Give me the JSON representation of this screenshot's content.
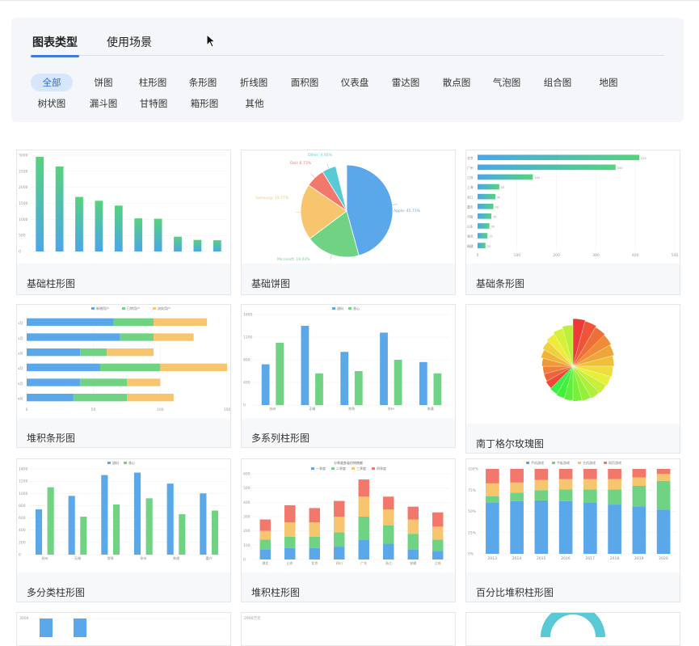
{
  "tabs": [
    {
      "label": "图表类型",
      "active": true
    },
    {
      "label": "使用场景",
      "active": false
    }
  ],
  "categories": [
    {
      "label": "全部",
      "active": true
    },
    {
      "label": "饼图"
    },
    {
      "label": "柱形图"
    },
    {
      "label": "条形图"
    },
    {
      "label": "折线图"
    },
    {
      "label": "面积图"
    },
    {
      "label": "仪表盘"
    },
    {
      "label": "雷达图"
    },
    {
      "label": "散点图"
    },
    {
      "label": "气泡图"
    },
    {
      "label": "组合图"
    },
    {
      "label": "地图"
    },
    {
      "label": "树状图"
    },
    {
      "label": "漏斗图"
    },
    {
      "label": "甘特图"
    },
    {
      "label": "箱形图"
    },
    {
      "label": "其他"
    }
  ],
  "cards": [
    {
      "title": "基础柱形图"
    },
    {
      "title": "基础饼图"
    },
    {
      "title": "基础条形图"
    },
    {
      "title": "堆积条形图"
    },
    {
      "title": "多系列柱形图"
    },
    {
      "title": "南丁格尔玫瑰图"
    },
    {
      "title": "多分类柱形图"
    },
    {
      "title": "堆积柱形图"
    },
    {
      "title": "百分比堆积柱形图"
    },
    {
      "title": ""
    },
    {
      "title": ""
    },
    {
      "title": ""
    }
  ],
  "thumbs": {
    "basic_bar": {
      "yticks": [
        "0",
        "500",
        "1000",
        "1500",
        "2000",
        "2500",
        "3000"
      ],
      "ymax": 3000,
      "values": [
        2950,
        2650,
        1700,
        1580,
        1430,
        1030,
        1020,
        460,
        360,
        350
      ]
    },
    "basic_pie": {
      "slices": [
        {
          "name": "Apple",
          "pct": 45.73,
          "label": "Apple: 45.73%",
          "color": "#5aa7ea"
        },
        {
          "name": "Microsoft",
          "pct": 19.02,
          "label": "Microsoft: 19.02%",
          "color": "#6fd383"
        },
        {
          "name": "Samsung",
          "pct": 19.77,
          "label": "Samsung: 19.77%",
          "color": "#f7c56d"
        },
        {
          "name": "Dell",
          "pct": 6.73,
          "label": "Dell: 6.73%",
          "color": "#f2786c"
        },
        {
          "name": "Other",
          "pct": 4.93,
          "label": "Other: 4.93%",
          "color": "#5ac9d6"
        }
      ]
    },
    "basic_hbar": {
      "xticks": [
        "0",
        "100",
        "200",
        "300",
        "400",
        "500"
      ],
      "xmax": 500,
      "rows": [
        {
          "cat": "北京",
          "v": 410
        },
        {
          "cat": "广州",
          "v": 350
        },
        {
          "cat": "江苏",
          "v": 140
        },
        {
          "cat": "上海",
          "v": 55
        },
        {
          "cat": "浙江",
          "v": 45
        },
        {
          "cat": "重庆",
          "v": 40
        },
        {
          "cat": "河南",
          "v": 35
        },
        {
          "cat": "山东",
          "v": 30
        },
        {
          "cat": "湖北",
          "v": 25
        },
        {
          "cat": "福建",
          "v": 20
        }
      ]
    },
    "stacked_hbar": {
      "legend": [
        "新增用户",
        "已转用户",
        "流失用户"
      ],
      "xticks": [
        "0",
        "50",
        "100",
        "150"
      ],
      "xmax": 150,
      "rows": [
        {
          "cat": "1月",
          "v": [
            65,
            30,
            40
          ]
        },
        {
          "cat": "2月",
          "v": [
            70,
            25,
            30
          ]
        },
        {
          "cat": "3月",
          "v": [
            40,
            20,
            35
          ]
        },
        {
          "cat": "4月",
          "v": [
            55,
            45,
            50
          ]
        },
        {
          "cat": "5月",
          "v": [
            40,
            35,
            25
          ]
        },
        {
          "cat": "6月",
          "v": [
            35,
            40,
            35
          ]
        }
      ]
    },
    "multi_bar": {
      "legend": [
        "甜料",
        "香心"
      ],
      "yticks": [
        "0",
        "400",
        "800",
        "1200",
        "1600"
      ],
      "ymax": 1600,
      "cats": [
        "苏州",
        "无锡",
        "常熟",
        "徐州",
        "南通"
      ],
      "s1": [
        720,
        1400,
        940,
        1280,
        760
      ],
      "s2": [
        1100,
        560,
        600,
        800,
        560
      ]
    },
    "rose": {
      "values": [
        0.95,
        0.93,
        0.9,
        0.88,
        0.85,
        0.82,
        0.8,
        0.78,
        0.76,
        0.74,
        0.72,
        0.7,
        0.68,
        0.66,
        0.64,
        0.62,
        0.6,
        0.6,
        0.62,
        0.66,
        0.7,
        0.74,
        0.78,
        0.82
      ]
    },
    "multi_cat": {
      "legend": [
        "甜料",
        "香心"
      ],
      "yticks": [
        "0",
        "200",
        "400",
        "600",
        "800",
        "1000",
        "1200",
        "1400"
      ],
      "ymax": 1400,
      "cats": [
        "苏州",
        "无锡",
        "常熟",
        "徐州",
        "南通",
        "嘉兴"
      ],
      "s1": [
        740,
        960,
        1300,
        1340,
        1160,
        1000
      ],
      "s2": [
        1100,
        620,
        820,
        920,
        660,
        720
      ]
    },
    "stacked_bar": {
      "title": "分季度各省份销售额",
      "legend": [
        "一季度",
        "二季度",
        "三季度",
        "四季度"
      ],
      "yticks": [
        "0",
        "100",
        "200",
        "300",
        "400",
        "500",
        "600"
      ],
      "ymax": 600,
      "cats": [
        "湖北",
        "山东",
        "北京",
        "四川",
        "广东",
        "浙江",
        "安徽",
        "江苏"
      ],
      "rows": [
        [
          70,
          70,
          60,
          80
        ],
        [
          80,
          80,
          100,
          120
        ],
        [
          80,
          80,
          100,
          100
        ],
        [
          90,
          100,
          110,
          110
        ],
        [
          140,
          160,
          140,
          120
        ],
        [
          110,
          130,
          110,
          90
        ],
        [
          70,
          110,
          100,
          90
        ],
        [
          60,
          80,
          90,
          100
        ]
      ]
    },
    "percent_bar": {
      "legend": [
        "手机游戏",
        "平板游戏",
        "主机游戏",
        "网页游戏"
      ],
      "yticks": [
        "0%",
        "25%",
        "50%",
        "75%",
        "100%"
      ],
      "cats": [
        "2013",
        "2014",
        "2015",
        "2016",
        "2017",
        "2018",
        "2019",
        "2020"
      ],
      "rows": [
        [
          60,
          8,
          15,
          17
        ],
        [
          62,
          10,
          12,
          16
        ],
        [
          63,
          12,
          12,
          13
        ],
        [
          62,
          14,
          12,
          12
        ],
        [
          60,
          16,
          12,
          12
        ],
        [
          58,
          18,
          12,
          12
        ],
        [
          56,
          24,
          10,
          10
        ],
        [
          52,
          34,
          8,
          6
        ]
      ]
    },
    "partial": {
      "row4_left_tick": "3000",
      "row4_mid_title": "2900万元"
    }
  },
  "colors": {
    "accent": "#3b7ed8",
    "blue": "#5aa7ea",
    "green": "#6fd383",
    "orange": "#f7c56d",
    "red": "#f2786c"
  }
}
